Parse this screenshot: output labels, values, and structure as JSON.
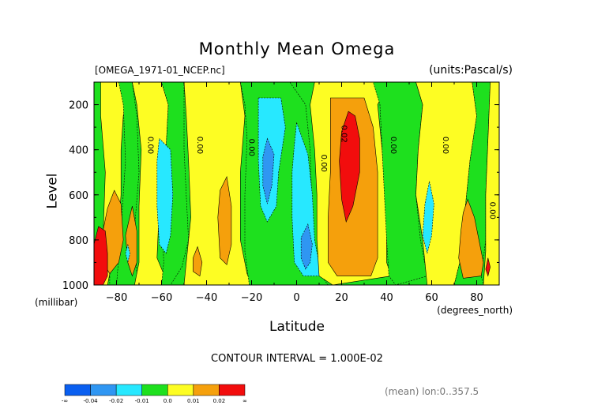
{
  "title": "Monthly Mean Omega",
  "file_label": "[OMEGA_1971-01_NCEP.nc]",
  "units_label": "(units:Pascal/s)",
  "ylabel": "Level",
  "yunits": "(millibar)",
  "xlabel": "Latitude",
  "xunits": "(degrees_north)",
  "contour_interval": "CONTOUR INTERVAL = 1.000E-02",
  "mean_label": "(mean) lon:0..357.5",
  "colors": {
    "lt_m04": "#0a5ff0",
    "m04_m02": "#2f96f2",
    "m02_m01": "#27e8ff",
    "m01_0": "#1ee01e",
    "0_001": "#fdfd23",
    "001_002": "#f5a00c",
    "gt_002": "#f20d0d"
  },
  "chart_data": {
    "type": "contour",
    "variable": "Omega",
    "x_ticks": [
      -80,
      -60,
      -40,
      -20,
      0,
      20,
      40,
      60,
      80
    ],
    "xlim": [
      -90,
      90
    ],
    "y_ticks": [
      200,
      400,
      600,
      800,
      1000
    ],
    "ylim": [
      1000,
      100
    ],
    "contour_labels": [
      {
        "text": "0.00",
        "x": -66,
        "y": 380
      },
      {
        "text": "0.00",
        "x": -44,
        "y": 380
      },
      {
        "text": "0.00",
        "x": -21,
        "y": 390
      },
      {
        "text": "0.00",
        "x": 11,
        "y": 460
      },
      {
        "text": "0.02",
        "x": 20,
        "y": 330
      },
      {
        "text": "0.00",
        "x": 42,
        "y": 380
      },
      {
        "text": "0.00",
        "x": 65,
        "y": 380
      },
      {
        "text": "0.00",
        "x": 86,
        "y": 670
      }
    ],
    "colorbar": {
      "labels": [
        "-∞",
        "-0.04",
        "-0.02",
        "-0.01",
        "0.0",
        "0.01",
        "0.02",
        "∞"
      ],
      "colors": [
        "#0a5ff0",
        "#2f96f2",
        "#27e8ff",
        "#1ee01e",
        "#fdfd23",
        "#f5a00c",
        "#f20d0d"
      ]
    },
    "regions": [
      {
        "level": "m01_0",
        "points": [
          [
            -90,
            100
          ],
          [
            -83,
            100
          ],
          [
            -83,
            1000
          ],
          [
            -90,
            1000
          ]
        ]
      },
      {
        "level": "0_001",
        "points": [
          [
            -87,
            100
          ],
          [
            -79,
            100
          ],
          [
            -75,
            160
          ],
          [
            -77,
            250
          ],
          [
            -78,
            400
          ],
          [
            -78,
            600
          ],
          [
            -79,
            750
          ],
          [
            -82,
            900
          ],
          [
            -84,
            1000
          ],
          [
            -87,
            1000
          ],
          [
            -86,
            800
          ],
          [
            -85,
            500
          ],
          [
            -87,
            250
          ]
        ]
      },
      {
        "level": "m01_0",
        "points": [
          [
            -79,
            100
          ],
          [
            -73,
            100
          ],
          [
            -71,
            250
          ],
          [
            -70,
            500
          ],
          [
            -72,
            750
          ],
          [
            -71,
            950
          ],
          [
            -69,
            1000
          ],
          [
            -80,
            1000
          ],
          [
            -78,
            750
          ],
          [
            -76,
            450
          ],
          [
            -77,
            200
          ]
        ]
      },
      {
        "level": "0_001",
        "points": [
          [
            -73,
            100
          ],
          [
            -60,
            100
          ],
          [
            -57,
            200
          ],
          [
            -58,
            400
          ],
          [
            -61,
            650
          ],
          [
            -62,
            880
          ],
          [
            -57,
            1000
          ],
          [
            -72,
            1000
          ],
          [
            -70,
            900
          ],
          [
            -70,
            650
          ],
          [
            -69,
            400
          ],
          [
            -71,
            200
          ]
        ]
      },
      {
        "level": "m01_0",
        "points": [
          [
            -60,
            100
          ],
          [
            -50,
            100
          ],
          [
            -50,
            400
          ],
          [
            -49,
            600
          ],
          [
            -48,
            800
          ],
          [
            -51,
            920
          ],
          [
            -56,
            1000
          ],
          [
            -60,
            1000
          ],
          [
            -59,
            900
          ],
          [
            -60,
            650
          ],
          [
            -58,
            400
          ],
          [
            -57,
            200
          ]
        ]
      },
      {
        "level": "0_001",
        "points": [
          [
            -50,
            100
          ],
          [
            -25,
            100
          ],
          [
            -23,
            250
          ],
          [
            -25,
            500
          ],
          [
            -25,
            800
          ],
          [
            -22,
            950
          ],
          [
            -20,
            1000
          ],
          [
            -50,
            1000
          ],
          [
            -49,
            900
          ],
          [
            -47,
            700
          ],
          [
            -48,
            450
          ],
          [
            -49,
            250
          ]
        ]
      },
      {
        "level": "m01_0",
        "points": [
          [
            -25,
            100
          ],
          [
            -3,
            100
          ],
          [
            4,
            200
          ],
          [
            6,
            400
          ],
          [
            7,
            700
          ],
          [
            8,
            880
          ],
          [
            11,
            960
          ],
          [
            14,
            1000
          ],
          [
            -21,
            1000
          ],
          [
            -23,
            850
          ],
          [
            -23,
            600
          ],
          [
            -22,
            350
          ],
          [
            -23,
            200
          ]
        ]
      },
      {
        "level": "m02_m01",
        "points": [
          [
            -17,
            170
          ],
          [
            -7,
            170
          ],
          [
            -5,
            300
          ],
          [
            -8,
            500
          ],
          [
            -9,
            650
          ],
          [
            -13,
            720
          ],
          [
            -16,
            650
          ],
          [
            -17,
            450
          ],
          [
            -17,
            300
          ]
        ]
      },
      {
        "level": "m02_m01",
        "points": [
          [
            0,
            280
          ],
          [
            5,
            420
          ],
          [
            7,
            600
          ],
          [
            8,
            800
          ],
          [
            11,
            960
          ],
          [
            3,
            960
          ],
          [
            -1,
            900
          ],
          [
            -2,
            700
          ],
          [
            -2,
            500
          ],
          [
            -1,
            380
          ]
        ]
      },
      {
        "level": "0_001",
        "points": [
          [
            8,
            100
          ],
          [
            34,
            100
          ],
          [
            40,
            120
          ],
          [
            36,
            200
          ],
          [
            38,
            400
          ],
          [
            40,
            700
          ],
          [
            40,
            900
          ],
          [
            42,
            960
          ],
          [
            16,
            1000
          ],
          [
            10,
            960
          ],
          [
            9,
            800
          ],
          [
            9,
            600
          ],
          [
            8,
            400
          ],
          [
            6,
            200
          ]
        ]
      },
      {
        "level": "001_002",
        "points": [
          [
            15,
            170
          ],
          [
            30,
            170
          ],
          [
            34,
            300
          ],
          [
            36,
            500
          ],
          [
            36,
            700
          ],
          [
            36,
            880
          ],
          [
            33,
            960
          ],
          [
            18,
            960
          ],
          [
            14,
            900
          ],
          [
            14,
            700
          ],
          [
            15,
            500
          ],
          [
            15,
            350
          ]
        ]
      },
      {
        "level": "m01_0",
        "points": [
          [
            34,
            100
          ],
          [
            53,
            100
          ],
          [
            56,
            200
          ],
          [
            54,
            400
          ],
          [
            53,
            600
          ],
          [
            55,
            800
          ],
          [
            58,
            960
          ],
          [
            44,
            1000
          ],
          [
            41,
            960
          ],
          [
            40,
            800
          ],
          [
            39,
            600
          ],
          [
            38,
            400
          ],
          [
            37,
            200
          ]
        ]
      },
      {
        "level": "0_001",
        "points": [
          [
            53,
            100
          ],
          [
            78,
            100
          ],
          [
            80,
            250
          ],
          [
            77,
            450
          ],
          [
            75,
            650
          ],
          [
            73,
            880
          ],
          [
            70,
            1000
          ],
          [
            58,
            1000
          ],
          [
            56,
            800
          ],
          [
            53,
            600
          ],
          [
            54,
            400
          ],
          [
            56,
            200
          ]
        ]
      },
      {
        "level": "m01_0",
        "points": [
          [
            78,
            100
          ],
          [
            86,
            100
          ],
          [
            85,
            350
          ],
          [
            84,
            600
          ],
          [
            84,
            800
          ],
          [
            82,
            960
          ],
          [
            83,
            1000
          ],
          [
            70,
            1000
          ],
          [
            73,
            880
          ],
          [
            75,
            650
          ],
          [
            77,
            450
          ],
          [
            80,
            250
          ]
        ]
      },
      {
        "level": "0_001",
        "points": [
          [
            86,
            100
          ],
          [
            90,
            100
          ],
          [
            90,
            1000
          ],
          [
            83,
            1000
          ],
          [
            84,
            850
          ],
          [
            84,
            600
          ],
          [
            85,
            350
          ]
        ]
      },
      {
        "level": "001_002",
        "points": [
          [
            76,
            620
          ],
          [
            79,
            700
          ],
          [
            81,
            800
          ],
          [
            83,
            900
          ],
          [
            82,
            960
          ],
          [
            74,
            970
          ],
          [
            72,
            880
          ],
          [
            73,
            760
          ],
          [
            74,
            680
          ]
        ]
      },
      {
        "level": "m02_m01",
        "points": [
          [
            -61,
            350
          ],
          [
            -56,
            400
          ],
          [
            -55,
            600
          ],
          [
            -56,
            780
          ],
          [
            -58,
            860
          ],
          [
            -61,
            820
          ],
          [
            -62,
            650
          ],
          [
            -62,
            450
          ]
        ]
      },
      {
        "level": "m02_m01",
        "points": [
          [
            59,
            540
          ],
          [
            61,
            640
          ],
          [
            60,
            780
          ],
          [
            58,
            860
          ],
          [
            56,
            780
          ],
          [
            57,
            640
          ]
        ]
      },
      {
        "level": "001_002",
        "points": [
          [
            -81,
            580
          ],
          [
            -78,
            640
          ],
          [
            -77,
            800
          ],
          [
            -79,
            900
          ],
          [
            -83,
            950
          ],
          [
            -86,
            900
          ],
          [
            -86,
            760
          ],
          [
            -84,
            660
          ]
        ]
      },
      {
        "level": "001_002",
        "points": [
          [
            -73,
            650
          ],
          [
            -71,
            760
          ],
          [
            -71,
            900
          ],
          [
            -73,
            960
          ],
          [
            -75,
            900
          ],
          [
            -76,
            780
          ]
        ]
      },
      {
        "level": "001_002",
        "points": [
          [
            -31,
            520
          ],
          [
            -29,
            650
          ],
          [
            -29,
            820
          ],
          [
            -31,
            910
          ],
          [
            -34,
            880
          ],
          [
            -35,
            700
          ],
          [
            -34,
            580
          ]
        ]
      },
      {
        "level": "001_002",
        "points": [
          [
            -44,
            830
          ],
          [
            -42,
            900
          ],
          [
            -43,
            960
          ],
          [
            -46,
            940
          ],
          [
            -46,
            880
          ]
        ]
      },
      {
        "level": "m04_m02",
        "points": [
          [
            -13,
            350
          ],
          [
            -10,
            420
          ],
          [
            -11,
            560
          ],
          [
            -13,
            640
          ],
          [
            -15,
            560
          ],
          [
            -15,
            430
          ]
        ]
      },
      {
        "level": "m04_m02",
        "points": [
          [
            5,
            730
          ],
          [
            7,
            820
          ],
          [
            6,
            900
          ],
          [
            4,
            930
          ],
          [
            2,
            880
          ],
          [
            2,
            790
          ]
        ]
      },
      {
        "level": "gt_002",
        "points": [
          [
            23,
            230
          ],
          [
            26,
            250
          ],
          [
            28,
            350
          ],
          [
            28,
            500
          ],
          [
            25,
            650
          ],
          [
            22,
            720
          ],
          [
            20,
            620
          ],
          [
            19,
            450
          ],
          [
            20,
            320
          ]
        ]
      },
      {
        "level": "gt_002",
        "points": [
          [
            -88,
            740
          ],
          [
            -85,
            760
          ],
          [
            -84,
            860
          ],
          [
            -84,
            960
          ],
          [
            -86,
            1000
          ],
          [
            -90,
            1000
          ],
          [
            -90,
            820
          ],
          [
            -89,
            780
          ]
        ]
      },
      {
        "level": "gt_002",
        "points": [
          [
            85,
            880
          ],
          [
            86,
            920
          ],
          [
            85,
            960
          ],
          [
            84,
            930
          ]
        ]
      },
      {
        "level": "m02_m01",
        "points": [
          [
            -75,
            820
          ],
          [
            -74,
            860
          ],
          [
            -75,
            900
          ],
          [
            -76,
            860
          ]
        ]
      }
    ]
  }
}
